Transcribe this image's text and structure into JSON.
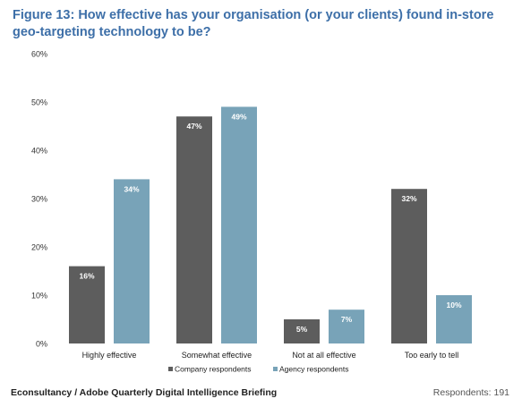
{
  "title": "Figure 13: How effective has your organisation (or your clients) found in-store geo-targeting technology to be?",
  "footer": {
    "source": "Econsultancy / Adobe Quarterly Digital Intelligence Briefing",
    "respondents": "Respondents: 191"
  },
  "chart_data": {
    "type": "bar",
    "categories": [
      "Highly effective",
      "Somewhat effective",
      "Not at all effective",
      "Too early to tell"
    ],
    "series": [
      {
        "name": "Company respondents",
        "values": [
          16,
          47,
          5,
          32
        ],
        "color": "#5d5d5d"
      },
      {
        "name": "Agency respondents",
        "values": [
          34,
          49,
          7,
          10
        ],
        "color": "#78a3b8"
      }
    ],
    "value_labels": [
      [
        "16%",
        "47%",
        "5%",
        "32%"
      ],
      [
        "34%",
        "49%",
        "7%",
        "10%"
      ]
    ],
    "yticks": [
      {
        "value": 0,
        "label": "0%"
      },
      {
        "value": 10,
        "label": "10%"
      },
      {
        "value": 20,
        "label": "20%"
      },
      {
        "value": 30,
        "label": "30%"
      },
      {
        "value": 40,
        "label": "40%"
      },
      {
        "value": 50,
        "label": "50%"
      },
      {
        "value": 60,
        "label": "60%"
      }
    ],
    "ylim": [
      0,
      60
    ],
    "grid": false,
    "legend_position": "bottom-center",
    "title": "",
    "xlabel": "",
    "ylabel": ""
  }
}
